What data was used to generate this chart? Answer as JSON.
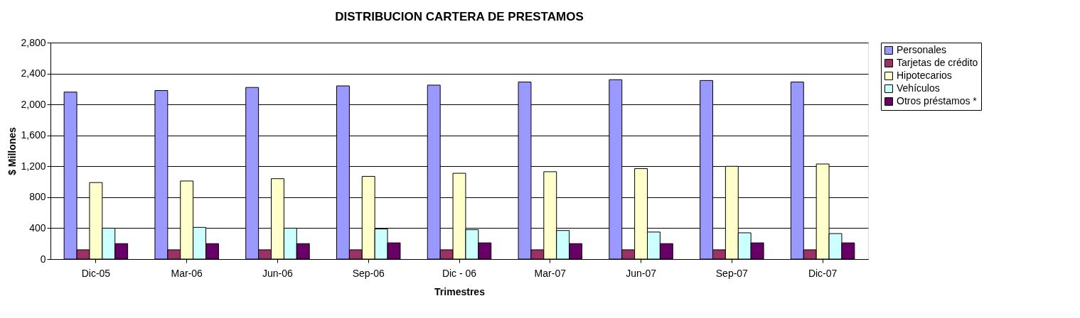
{
  "chart_data": {
    "type": "bar",
    "title": "DISTRIBUCION CARTERA DE PRESTAMOS",
    "xlabel": "Trimestres",
    "ylabel": "$ Millones",
    "categories": [
      "Dic-05",
      "Mar-06",
      "Jun-06",
      "Sep-06",
      "Dic - 06",
      "Mar-07",
      "Jun-07",
      "Sep-07",
      "Dic-07"
    ],
    "series": [
      {
        "name": "Personales",
        "color": "#9999ff",
        "values": [
          2160,
          2180,
          2220,
          2240,
          2250,
          2290,
          2320,
          2310,
          2290
        ]
      },
      {
        "name": "Tarjetas de crédito",
        "color": "#993366",
        "values": [
          120,
          120,
          120,
          120,
          120,
          120,
          120,
          120,
          120
        ]
      },
      {
        "name": "Hipotecarios",
        "color": "#ffffcc",
        "values": [
          990,
          1010,
          1040,
          1070,
          1110,
          1130,
          1170,
          1200,
          1230
        ]
      },
      {
        "name": "Vehículos",
        "color": "#ccffff",
        "values": [
          400,
          410,
          400,
          390,
          380,
          370,
          350,
          340,
          330
        ]
      },
      {
        "name": "Otros préstamos *",
        "color": "#660066",
        "values": [
          200,
          200,
          200,
          210,
          210,
          200,
          200,
          210,
          210
        ]
      }
    ],
    "ylim": [
      0,
      2800
    ],
    "yticks": [
      {
        "value": 0,
        "label": "0"
      },
      {
        "value": 400,
        "label": "400"
      },
      {
        "value": 800,
        "label": "800"
      },
      {
        "value": 1200,
        "label": "1,200"
      },
      {
        "value": 1600,
        "label": "1,600"
      },
      {
        "value": 2000,
        "label": "2,000"
      },
      {
        "value": 2400,
        "label": "2,400"
      },
      {
        "value": 2800,
        "label": "2,800"
      }
    ],
    "grid": "y",
    "legend": "right"
  }
}
